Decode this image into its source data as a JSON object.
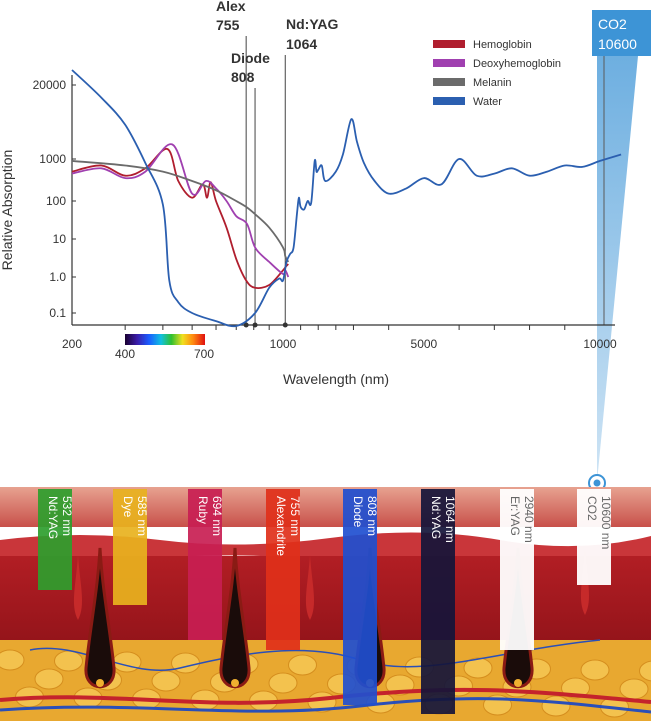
{
  "chart_data": {
    "type": "line",
    "ylabel": "Relative Absorption",
    "xlabel": "Wavelength (nm)",
    "x_ticks": [
      "200",
      "1000",
      "5000",
      "10000"
    ],
    "y_ticks": [
      "20000",
      "1000",
      "100",
      "10",
      "1.0",
      "0.1"
    ],
    "xlim": [
      200,
      10600
    ],
    "ylim": [
      0.08,
      30000
    ],
    "spectrum_bar": {
      "start_label": "400",
      "end_label": "700"
    },
    "legend_position": "top-right",
    "series": [
      {
        "name": "Hemoglobin",
        "color": "#b01e2e",
        "points": [
          [
            200,
            500
          ],
          [
            250,
            700
          ],
          [
            300,
            400
          ],
          [
            350,
            600
          ],
          [
            414,
            1500
          ],
          [
            450,
            300
          ],
          [
            500,
            120
          ],
          [
            542,
            250
          ],
          [
            560,
            120
          ],
          [
            576,
            280
          ],
          [
            600,
            100
          ],
          [
            650,
            20
          ],
          [
            700,
            3
          ],
          [
            755,
            0.8
          ],
          [
            808,
            0.5
          ],
          [
            900,
            0.6
          ],
          [
            1000,
            1.5
          ],
          [
            1064,
            1.8
          ],
          [
            1150,
            2.2
          ]
        ]
      },
      {
        "name": "Deoxyhemoglobin",
        "color": "#a040b0",
        "points": [
          [
            200,
            450
          ],
          [
            250,
            600
          ],
          [
            300,
            350
          ],
          [
            350,
            500
          ],
          [
            430,
            1800
          ],
          [
            500,
            150
          ],
          [
            555,
            300
          ],
          [
            600,
            200
          ],
          [
            650,
            100
          ],
          [
            700,
            40
          ],
          [
            760,
            25
          ],
          [
            808,
            6
          ],
          [
            900,
            2.5
          ],
          [
            1000,
            1.2
          ],
          [
            1064,
            1.5
          ],
          [
            1150,
            1.0
          ]
        ]
      },
      {
        "name": "Melanin",
        "color": "#6b6b6b",
        "points": [
          [
            200,
            900
          ],
          [
            300,
            700
          ],
          [
            400,
            500
          ],
          [
            500,
            300
          ],
          [
            600,
            180
          ],
          [
            700,
            100
          ],
          [
            755,
            70
          ],
          [
            808,
            45
          ],
          [
            900,
            20
          ],
          [
            1000,
            6
          ],
          [
            1064,
            3.5
          ],
          [
            1150,
            2.5
          ]
        ]
      },
      {
        "name": "Water",
        "color": "#2b5fb0",
        "points": [
          [
            200,
            40000
          ],
          [
            250,
            12000
          ],
          [
            300,
            4000
          ],
          [
            350,
            800
          ],
          [
            400,
            80
          ],
          [
            420,
            0.8
          ],
          [
            450,
            0.2
          ],
          [
            500,
            0.1
          ],
          [
            600,
            0.08
          ],
          [
            700,
            0.07
          ],
          [
            808,
            0.1
          ],
          [
            900,
            0.5
          ],
          [
            970,
            0.9
          ],
          [
            1000,
            0.8
          ],
          [
            1100,
            2.5
          ],
          [
            1200,
            4
          ],
          [
            1300,
            6
          ],
          [
            1400,
            50
          ],
          [
            1450,
            120
          ],
          [
            1500,
            70
          ],
          [
            1600,
            60
          ],
          [
            1700,
            100
          ],
          [
            1800,
            90
          ],
          [
            1900,
            900
          ],
          [
            1950,
            500
          ],
          [
            2000,
            550
          ],
          [
            2100,
            700
          ],
          [
            2200,
            300
          ],
          [
            2500,
            500
          ],
          [
            2700,
            1200
          ],
          [
            2940,
            5000
          ],
          [
            3100,
            2000
          ],
          [
            3300,
            800
          ],
          [
            3600,
            300
          ],
          [
            4000,
            150
          ],
          [
            4500,
            200
          ],
          [
            5000,
            350
          ],
          [
            5500,
            250
          ],
          [
            6000,
            1000
          ],
          [
            6500,
            400
          ],
          [
            7000,
            450
          ],
          [
            7500,
            600
          ],
          [
            8000,
            400
          ],
          [
            8500,
            500
          ],
          [
            9000,
            700
          ],
          [
            9500,
            650
          ],
          [
            10000,
            900
          ],
          [
            10600,
            1200
          ]
        ]
      }
    ],
    "markers": [
      {
        "wavelength": 755,
        "label_line1": "Alex",
        "label_line2": "755"
      },
      {
        "wavelength": 808,
        "label_line1": "Diode",
        "label_line2": "808"
      },
      {
        "wavelength": 1064,
        "label_line1": "Nd:YAG",
        "label_line2": "1064"
      }
    ],
    "callout": {
      "label_line1": "CO2",
      "label_line2": "10600",
      "wavelength": 10600,
      "color": "#3d94d6"
    }
  },
  "lasers": [
    {
      "name": "Nd:YAG",
      "wavelength": "532 nm",
      "color": "#2e9e2e",
      "text_color": "#ffffff"
    },
    {
      "name": "Dye",
      "wavelength": "585 nm",
      "color": "#e8b21e",
      "text_color": "#ffffff"
    },
    {
      "name": "Ruby",
      "wavelength": "694 nm",
      "color": "#c81e52",
      "text_color": "#ffffff"
    },
    {
      "name": "Alexandrite",
      "wavelength": "755 nm",
      "color": "#e0301a",
      "text_color": "#ffffff"
    },
    {
      "name": "Diode",
      "wavelength": "808 nm",
      "color": "#1f4fd0",
      "text_color": "#ffffff"
    },
    {
      "name": "Nd:YAG",
      "wavelength": "1064 nm",
      "color": "#15153a",
      "text_color": "#ffffff"
    },
    {
      "name": "Er:YAG",
      "wavelength": "2940 nm",
      "color": "#ffffff",
      "text_color": "#666666"
    },
    {
      "name": "CO2",
      "wavelength": "10600 nm",
      "color": "#ffffff",
      "text_color": "#666666"
    }
  ]
}
